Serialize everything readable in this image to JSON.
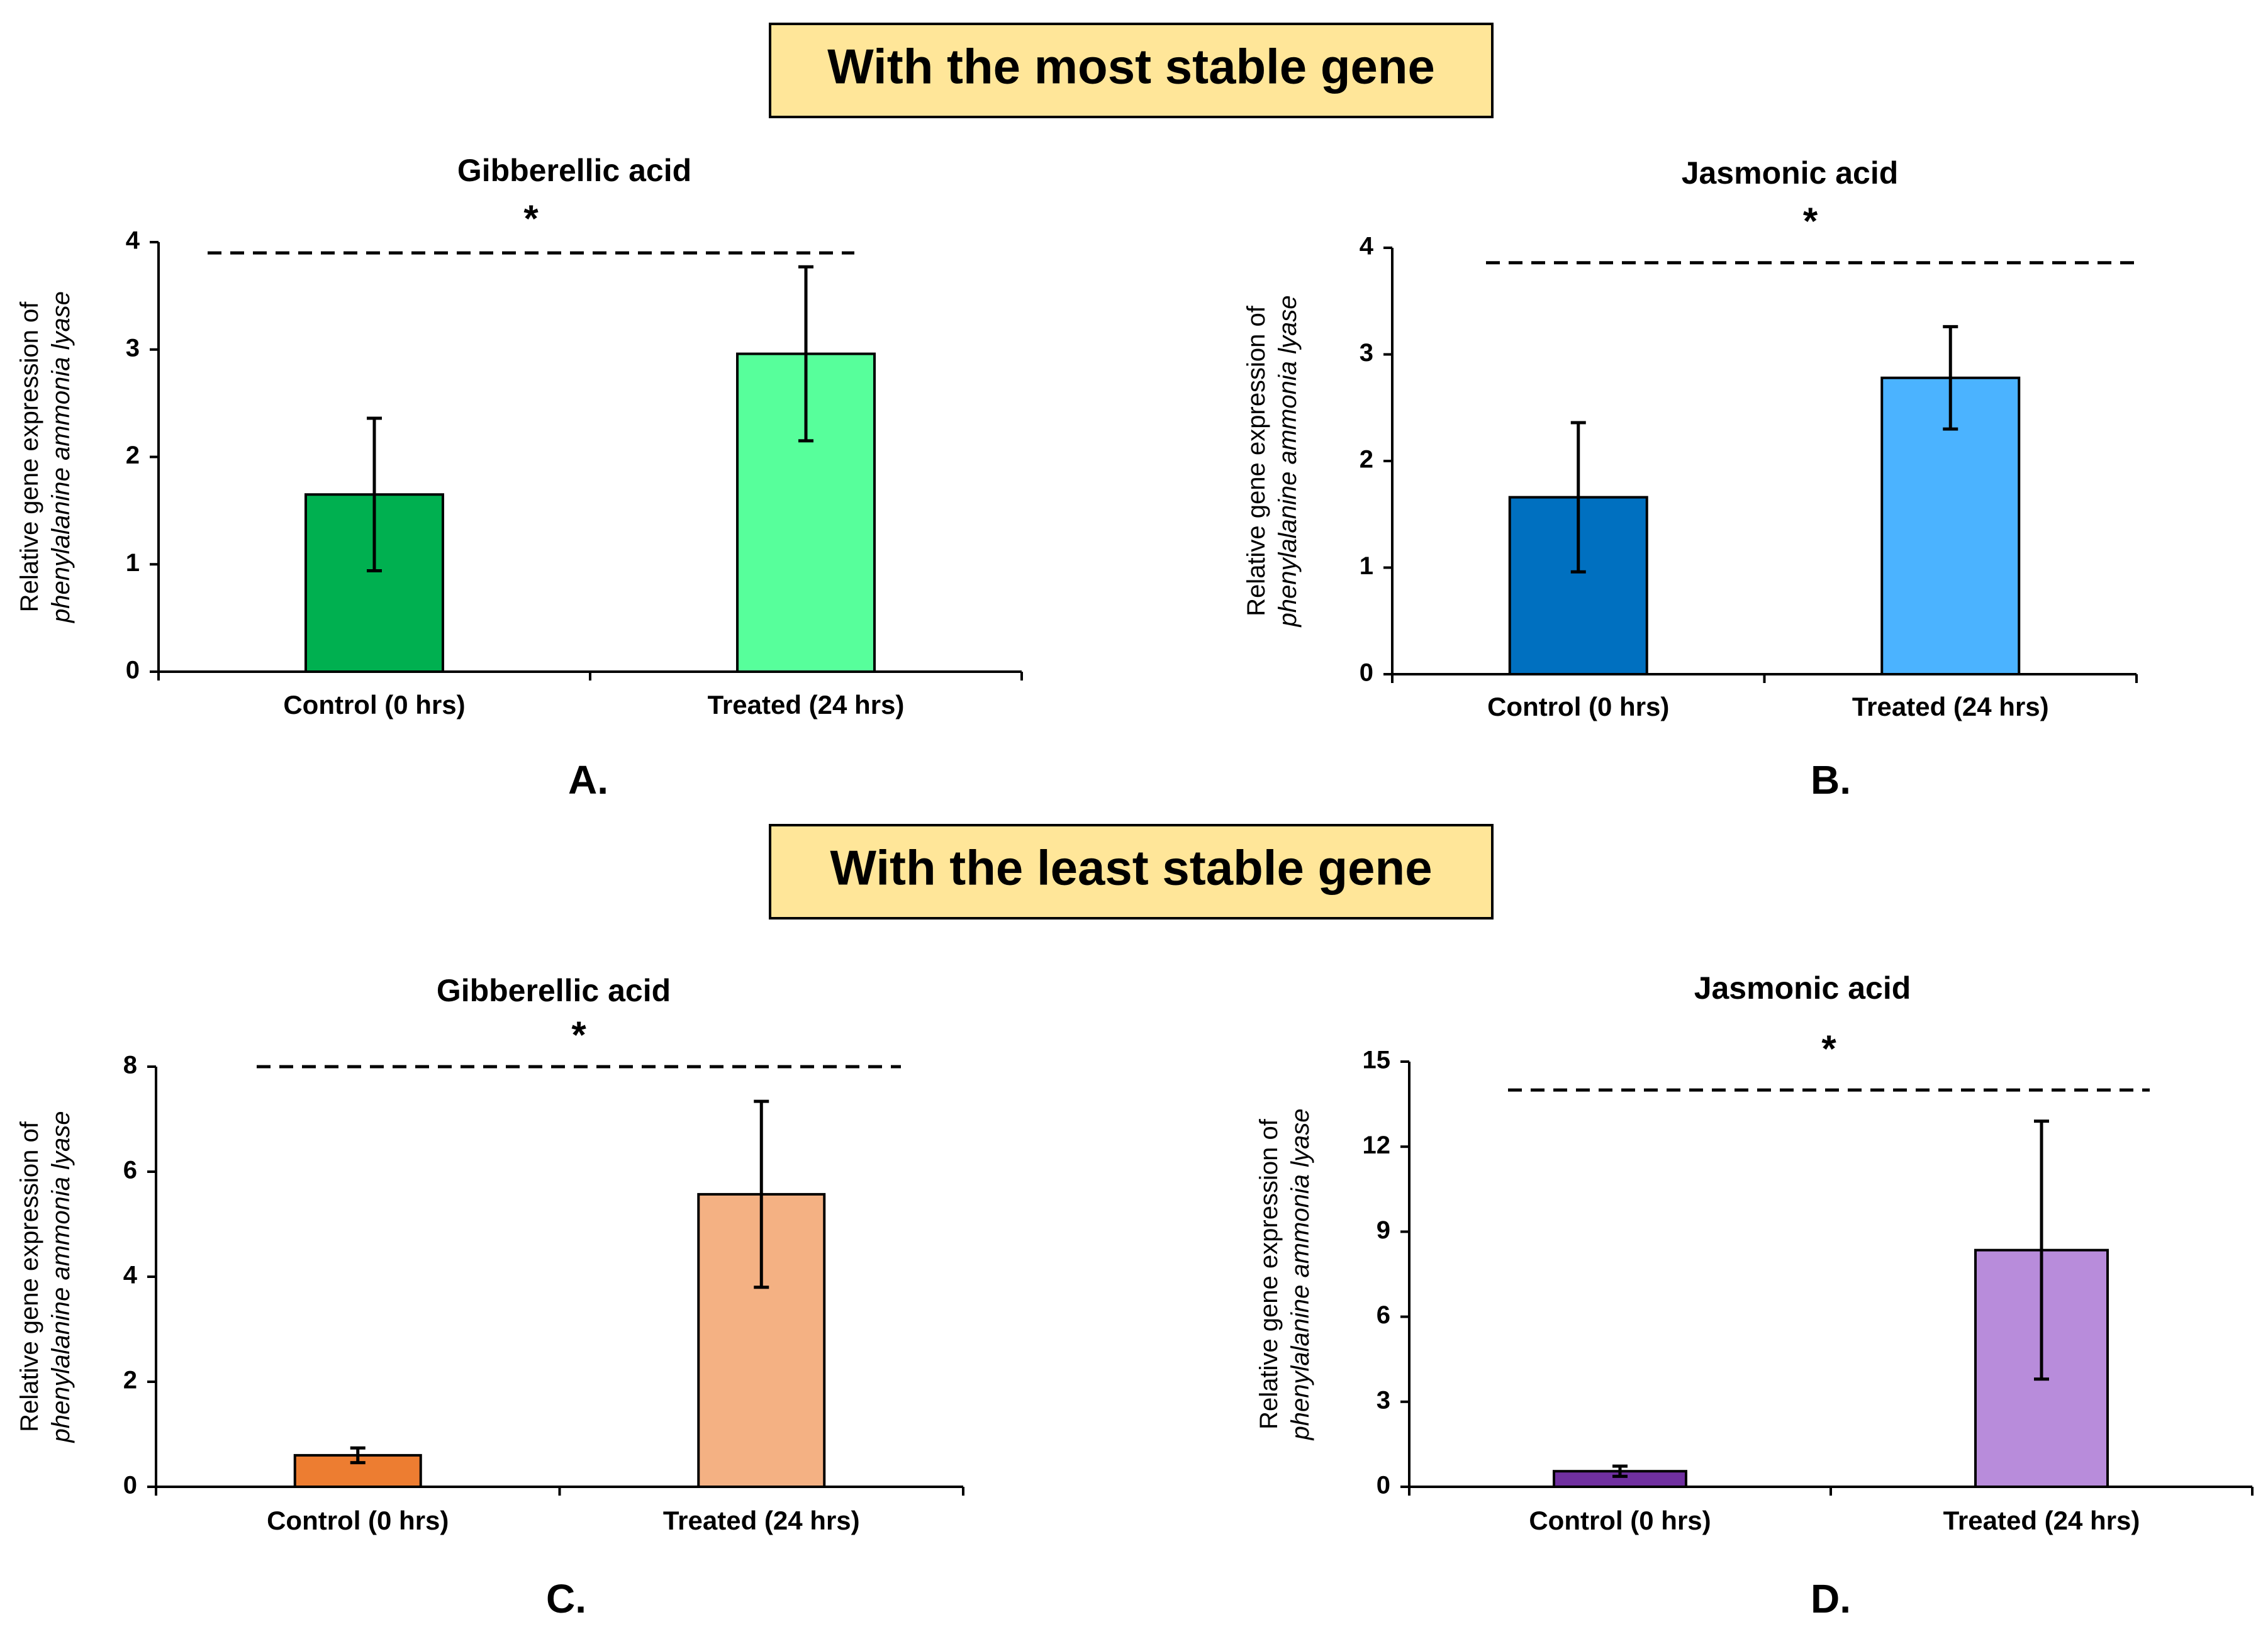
{
  "headers": {
    "top": "With the most stable gene",
    "bottom": "With the least stable gene"
  },
  "colors": {
    "header_fill": "#FFE699",
    "axis": "#000000",
    "panel_a_control": "#00B050",
    "panel_a_treated": "#57FF9B",
    "panel_b_control": "#0070C0",
    "panel_b_treated": "#4BB3FF",
    "panel_c_control": "#ED7D31",
    "panel_c_treated": "#F4B183",
    "panel_d_control": "#7030A0",
    "panel_d_treated": "#B88CDB"
  },
  "chart_data": [
    {
      "type": "bar",
      "panel_label": "A.",
      "title": "Gibberellic acid",
      "ylabel_line1": "Relative gene expression of",
      "ylabel_line2": "phenylalanine ammonia lyase",
      "categories": [
        "Control (0 hrs)",
        "Treated (24 hrs)"
      ],
      "values": [
        1.65,
        2.96
      ],
      "errors": [
        0.71,
        0.81
      ],
      "ylim": [
        0,
        4
      ],
      "yticks": [
        0,
        1,
        2,
        3,
        4
      ],
      "significance_value": 3.9,
      "significance_marker": "*",
      "bar_colors": [
        "#00B050",
        "#57FF9B"
      ]
    },
    {
      "type": "bar",
      "panel_label": "B.",
      "title": "Jasmonic acid",
      "ylabel_line1": "Relative gene expression of",
      "ylabel_line2": "phenylalanine ammonia lyase",
      "categories": [
        "Control (0 hrs)",
        "Treated (24 hrs)"
      ],
      "values": [
        1.66,
        2.78
      ],
      "errors": [
        0.7,
        0.48
      ],
      "ylim": [
        0,
        4
      ],
      "yticks": [
        0,
        1,
        2,
        3,
        4
      ],
      "significance_value": 3.86,
      "significance_marker": "*",
      "bar_colors": [
        "#0070C0",
        "#4BB3FF"
      ]
    },
    {
      "type": "bar",
      "panel_label": "C.",
      "title": "Gibberellic acid",
      "ylabel_line1": "Relative gene expression of",
      "ylabel_line2": "phenylalanine ammonia lyase",
      "categories": [
        "Control (0 hrs)",
        "Treated (24 hrs)"
      ],
      "values": [
        0.6,
        5.57
      ],
      "errors": [
        0.14,
        1.77
      ],
      "ylim": [
        0,
        8
      ],
      "yticks": [
        0,
        2,
        4,
        6,
        8
      ],
      "significance_value": 8,
      "significance_marker": "*",
      "bar_colors": [
        "#ED7D31",
        "#F4B183"
      ]
    },
    {
      "type": "bar",
      "panel_label": "D.",
      "title": "Jasmonic acid",
      "ylabel_line1": "Relative gene expression of",
      "ylabel_line2": "phenylalanine ammonia lyase",
      "categories": [
        "Control (0 hrs)",
        "Treated (24 hrs)"
      ],
      "values": [
        0.55,
        8.35
      ],
      "errors": [
        0.18,
        4.55
      ],
      "ylim": [
        0,
        15
      ],
      "yticks": [
        0,
        3,
        6,
        9,
        12,
        15
      ],
      "significance_value": 14,
      "significance_marker": "*",
      "bar_colors": [
        "#7030A0",
        "#B88CDB"
      ]
    }
  ]
}
